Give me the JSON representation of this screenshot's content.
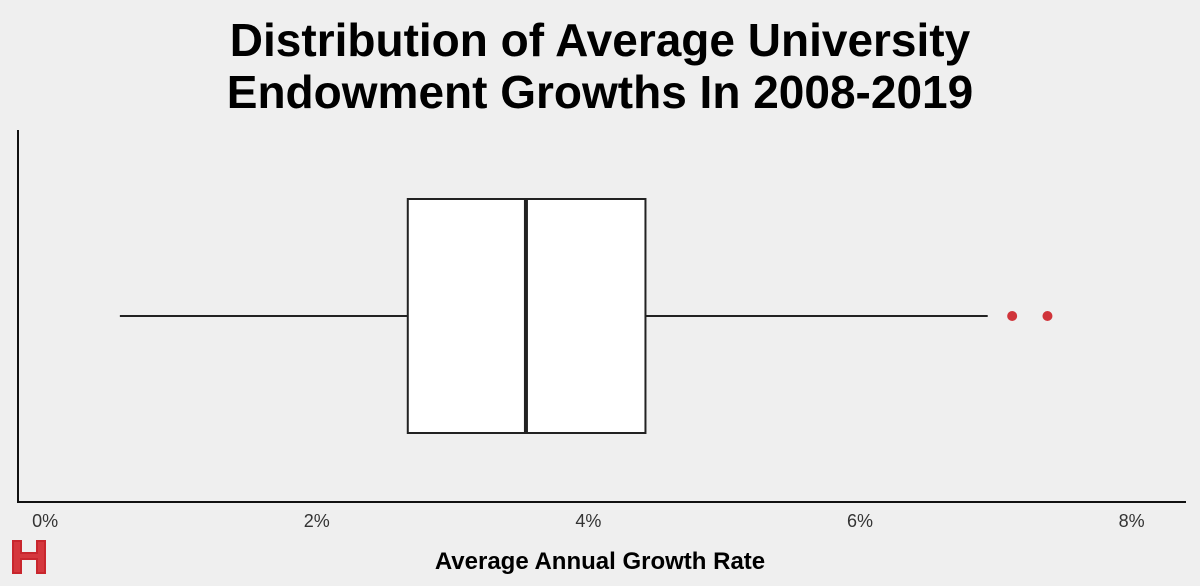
{
  "chart_data": {
    "type": "boxplot",
    "title_lines": [
      "Distribution of Average University",
      "Endowment Growths In 2008-2019"
    ],
    "xlabel": "Average Annual Growth Rate",
    "ylabel": "",
    "xlim": [
      -0.2,
      8.4
    ],
    "x_ticks": [
      0,
      2,
      4,
      6,
      8
    ],
    "x_tick_labels": [
      "0%",
      "2%",
      "4%",
      "6%",
      "8%"
    ],
    "box": {
      "whisker_low": 0.55,
      "q1": 2.67,
      "median": 3.54,
      "q3": 4.42,
      "whisker_high": 6.94
    },
    "outliers": [
      7.12,
      7.38
    ],
    "grid": false,
    "colors": {
      "background": "#efefef",
      "box_fill": "#ffffff",
      "line": "#222222",
      "outlier": "#d0343a",
      "logo": "#c8262d"
    }
  }
}
